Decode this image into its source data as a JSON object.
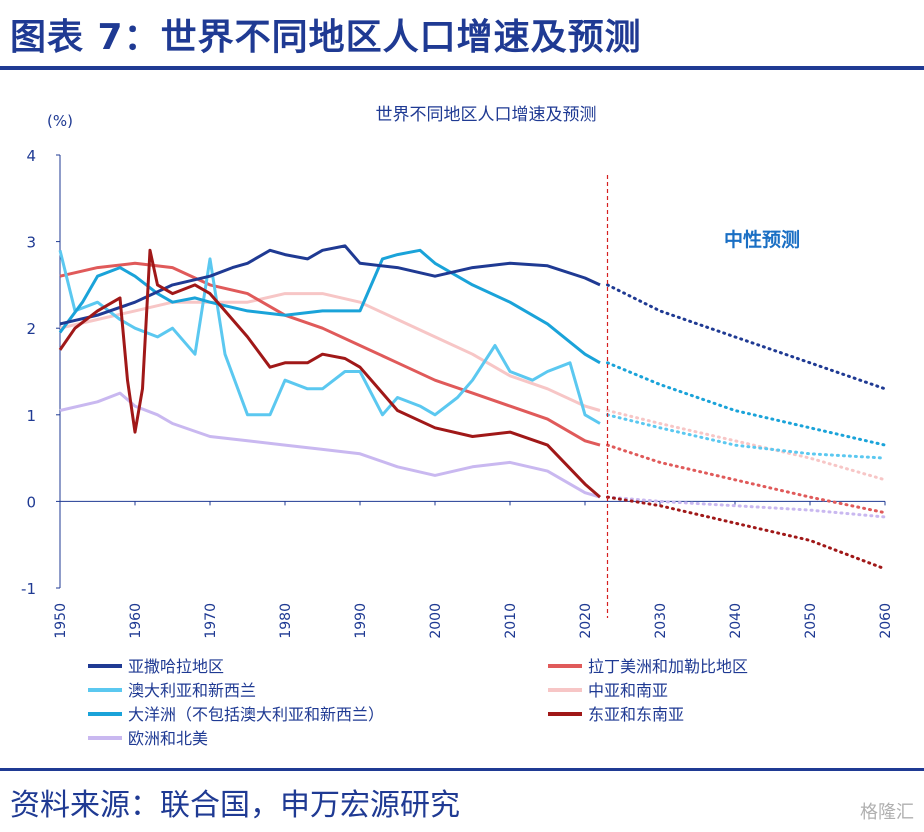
{
  "figure_title": "图表 7：世界不同地区人口增速及预测",
  "source": "资料来源：联合国，申万宏源研究",
  "watermark": "格隆汇",
  "chart_data": {
    "type": "line",
    "title": "世界不同地区人口增速及预测",
    "ylabel": "(%)",
    "xlabel": "",
    "xlim": [
      1950,
      2060
    ],
    "ylim": [
      -1,
      4
    ],
    "x_ticks": [
      1950,
      1960,
      1970,
      1980,
      1990,
      2000,
      2010,
      2020,
      2030,
      2040,
      2050,
      2060
    ],
    "y_ticks": [
      -1,
      0,
      1,
      2,
      3,
      4
    ],
    "grid": false,
    "legend_position": "bottom",
    "forecast_start": 2023,
    "annotation": "中性预测",
    "series": [
      {
        "name": "亚撒哈拉地区",
        "color": "#1f3a93",
        "x": [
          1950,
          1955,
          1960,
          1965,
          1970,
          1973,
          1975,
          1978,
          1980,
          1983,
          1985,
          1988,
          1990,
          1995,
          2000,
          2005,
          2010,
          2015,
          2020,
          2022
        ],
        "y": [
          2.05,
          2.15,
          2.3,
          2.5,
          2.6,
          2.7,
          2.75,
          2.9,
          2.85,
          2.8,
          2.9,
          2.95,
          2.75,
          2.7,
          2.6,
          2.7,
          2.75,
          2.72,
          2.58,
          2.5
        ],
        "proj_x": [
          2023,
          2030,
          2040,
          2050,
          2060
        ],
        "proj_y": [
          2.5,
          2.2,
          1.9,
          1.6,
          1.3
        ]
      },
      {
        "name": "拉丁美洲和加勒比地区",
        "color": "#e05a5a",
        "x": [
          1950,
          1955,
          1960,
          1965,
          1970,
          1975,
          1980,
          1985,
          1990,
          1995,
          2000,
          2005,
          2010,
          2015,
          2020,
          2022
        ],
        "y": [
          2.6,
          2.7,
          2.75,
          2.7,
          2.5,
          2.4,
          2.15,
          2.0,
          1.8,
          1.6,
          1.4,
          1.25,
          1.1,
          0.95,
          0.7,
          0.65
        ],
        "proj_x": [
          2023,
          2030,
          2040,
          2050,
          2060
        ],
        "proj_y": [
          0.65,
          0.45,
          0.25,
          0.05,
          -0.13
        ]
      },
      {
        "name": "澳大利亚和新西兰",
        "color": "#5bc8f0",
        "x": [
          1950,
          1952,
          1955,
          1958,
          1960,
          1963,
          1965,
          1968,
          1970,
          1972,
          1975,
          1978,
          1980,
          1983,
          1985,
          1988,
          1990,
          1993,
          1995,
          1998,
          2000,
          2003,
          2005,
          2008,
          2010,
          2013,
          2015,
          2018,
          2020,
          2022
        ],
        "y": [
          2.9,
          2.2,
          2.3,
          2.1,
          2.0,
          1.9,
          2.0,
          1.7,
          2.8,
          1.7,
          1.0,
          1.0,
          1.4,
          1.3,
          1.3,
          1.5,
          1.5,
          1.0,
          1.2,
          1.1,
          1.0,
          1.2,
          1.4,
          1.8,
          1.5,
          1.4,
          1.5,
          1.6,
          1.0,
          0.9
        ],
        "proj_x": [
          2023,
          2030,
          2040,
          2050,
          2060
        ],
        "proj_y": [
          1.0,
          0.85,
          0.65,
          0.55,
          0.5
        ]
      },
      {
        "name": "中亚和南亚",
        "color": "#f7c6c6",
        "x": [
          1950,
          1955,
          1960,
          1965,
          1970,
          1975,
          1980,
          1985,
          1990,
          1995,
          2000,
          2005,
          2010,
          2015,
          2020,
          2022
        ],
        "y": [
          2.0,
          2.1,
          2.2,
          2.3,
          2.3,
          2.3,
          2.4,
          2.4,
          2.3,
          2.1,
          1.9,
          1.7,
          1.45,
          1.3,
          1.1,
          1.05
        ],
        "proj_x": [
          2023,
          2030,
          2040,
          2050,
          2060
        ],
        "proj_y": [
          1.05,
          0.9,
          0.7,
          0.5,
          0.25
        ]
      },
      {
        "name": "大洋洲（不包括澳大利亚和新西兰）",
        "color": "#1aa3d9",
        "x": [
          1950,
          1953,
          1955,
          1958,
          1960,
          1963,
          1965,
          1968,
          1970,
          1975,
          1980,
          1985,
          1990,
          1993,
          1995,
          1998,
          2000,
          2005,
          2010,
          2015,
          2020,
          2022
        ],
        "y": [
          1.95,
          2.3,
          2.6,
          2.7,
          2.6,
          2.4,
          2.3,
          2.35,
          2.3,
          2.2,
          2.15,
          2.2,
          2.2,
          2.8,
          2.85,
          2.9,
          2.75,
          2.5,
          2.3,
          2.05,
          1.7,
          1.6
        ],
        "proj_x": [
          2023,
          2030,
          2040,
          2050,
          2060
        ],
        "proj_y": [
          1.6,
          1.35,
          1.05,
          0.85,
          0.65
        ]
      },
      {
        "name": "东亚和东南亚",
        "color": "#a01818",
        "x": [
          1950,
          1952,
          1955,
          1958,
          1959,
          1960,
          1961,
          1962,
          1963,
          1965,
          1968,
          1970,
          1972,
          1975,
          1978,
          1980,
          1983,
          1985,
          1988,
          1990,
          1993,
          1995,
          2000,
          2005,
          2010,
          2015,
          2020,
          2022
        ],
        "y": [
          1.75,
          2.0,
          2.2,
          2.35,
          1.4,
          0.8,
          1.3,
          2.9,
          2.5,
          2.4,
          2.5,
          2.4,
          2.2,
          1.9,
          1.55,
          1.6,
          1.6,
          1.7,
          1.65,
          1.55,
          1.25,
          1.05,
          0.85,
          0.75,
          0.8,
          0.65,
          0.2,
          0.05
        ],
        "proj_x": [
          2023,
          2030,
          2040,
          2050,
          2060
        ],
        "proj_y": [
          0.05,
          -0.05,
          -0.25,
          -0.45,
          -0.78
        ]
      },
      {
        "name": "欧洲和北美",
        "color": "#c9b8f0",
        "x": [
          1950,
          1955,
          1958,
          1960,
          1963,
          1965,
          1970,
          1975,
          1980,
          1985,
          1990,
          1995,
          2000,
          2005,
          2010,
          2015,
          2020,
          2022
        ],
        "y": [
          1.05,
          1.15,
          1.25,
          1.1,
          1.0,
          0.9,
          0.75,
          0.7,
          0.65,
          0.6,
          0.55,
          0.4,
          0.3,
          0.4,
          0.45,
          0.35,
          0.1,
          0.05
        ],
        "proj_x": [
          2023,
          2030,
          2040,
          2050,
          2060
        ],
        "proj_y": [
          0.05,
          0.0,
          -0.05,
          -0.1,
          -0.18
        ]
      }
    ]
  }
}
